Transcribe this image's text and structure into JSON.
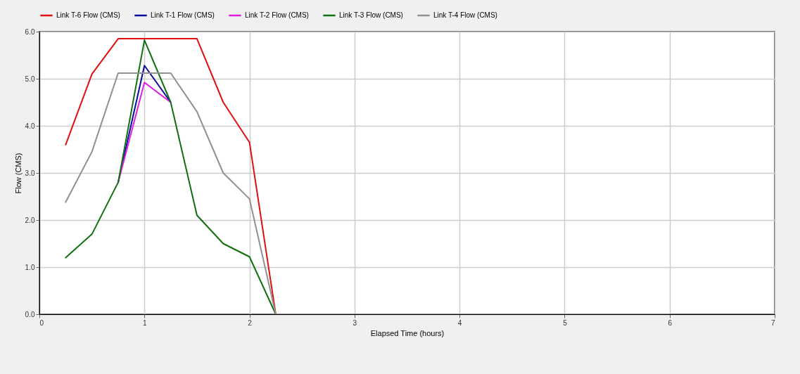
{
  "chart_data": {
    "type": "line",
    "xlabel": "Elapsed Time (hours)",
    "ylabel": "Flow (CMS)",
    "x": [
      0.25,
      0.5,
      0.75,
      1,
      1.25,
      1.5,
      1.75,
      2,
      2.25,
      6
    ],
    "series": [
      {
        "name": "Link T-6 Flow (CMS)",
        "color": "#e01010",
        "values": [
          3.6,
          5.1,
          5.85,
          5.85,
          5.85,
          5.85,
          4.5,
          3.65,
          0,
          0
        ]
      },
      {
        "name": "Link T-1 Flow (CMS)",
        "color": "#0a0aa0",
        "values": [
          null,
          null,
          2.8,
          5.28,
          4.5,
          null,
          null,
          null,
          null,
          null
        ]
      },
      {
        "name": "Link T-2 Flow (CMS)",
        "color": "#e020e0",
        "values": [
          null,
          null,
          2.8,
          4.92,
          4.5,
          null,
          null,
          null,
          null,
          null
        ]
      },
      {
        "name": "Link T-3 Flow (CMS)",
        "color": "#107010",
        "values": [
          1.2,
          1.7,
          2.8,
          5.82,
          4.5,
          2.1,
          1.5,
          1.22,
          0,
          0
        ]
      },
      {
        "name": "Link T-4 Flow (CMS)",
        "color": "#909090",
        "values": [
          2.38,
          3.45,
          5.12,
          5.12,
          5.12,
          4.3,
          3.0,
          2.45,
          0,
          0
        ]
      }
    ],
    "xlim": [
      0,
      7
    ],
    "xticks": [
      0,
      1,
      2,
      3,
      4,
      5,
      6,
      7
    ],
    "ylim": [
      0,
      6
    ],
    "yticks": [
      {
        "value": 0,
        "label": "0.0"
      },
      {
        "value": 1,
        "label": "1.0"
      },
      {
        "value": 2,
        "label": "2.0"
      },
      {
        "value": 3,
        "label": "3.0"
      },
      {
        "value": 4,
        "label": "4.0"
      },
      {
        "value": 5,
        "label": "5.0"
      },
      {
        "value": 6,
        "label": "6.0"
      }
    ],
    "grid": true,
    "legend": "top",
    "marker": "none",
    "line_style": "solid"
  }
}
